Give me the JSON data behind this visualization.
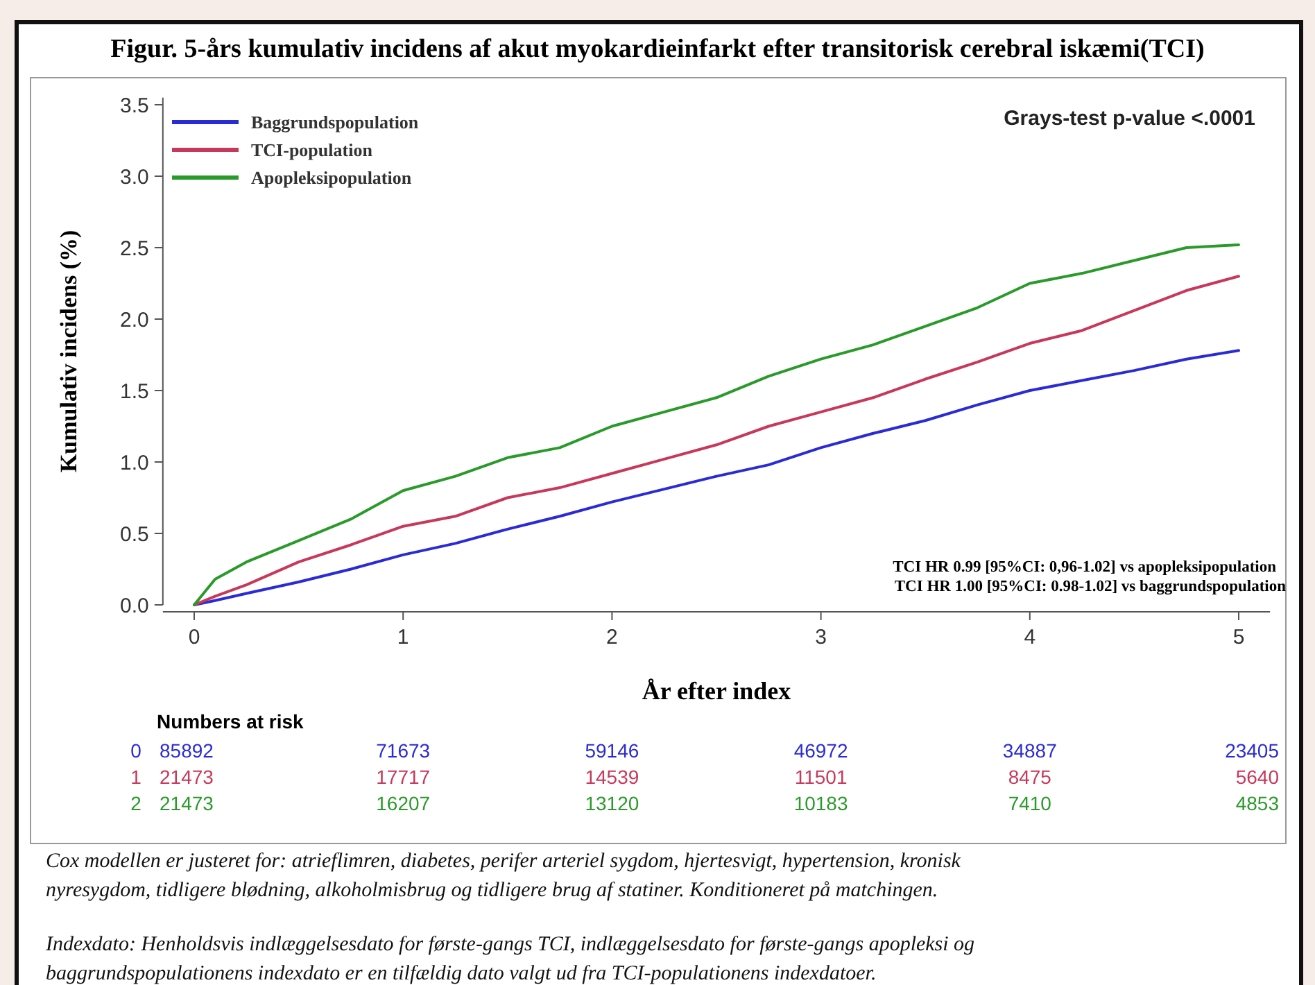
{
  "chart_data": {
    "type": "line",
    "title": "Figur. 5-års kumulativ incidens af akut myokardieinfarkt efter transitorisk cerebral iskæmi(TCI)",
    "xlabel": "År efter index",
    "ylabel": "Kumulativ incidens (%)",
    "x": [
      0,
      0.1,
      0.25,
      0.5,
      0.75,
      1,
      1.25,
      1.5,
      1.75,
      2,
      2.25,
      2.5,
      2.75,
      3,
      3.25,
      3.5,
      3.75,
      4,
      4.25,
      4.5,
      4.75,
      5
    ],
    "series": [
      {
        "name": "Baggrundspopulation",
        "color": "#2b2bd6",
        "values": [
          0,
          0.03,
          0.08,
          0.16,
          0.25,
          0.35,
          0.43,
          0.53,
          0.62,
          0.72,
          0.81,
          0.9,
          0.98,
          1.1,
          1.2,
          1.29,
          1.4,
          1.5,
          1.57,
          1.64,
          1.72,
          1.78
        ]
      },
      {
        "name": "TCI-population",
        "color": "#c8385a",
        "values": [
          0,
          0.06,
          0.14,
          0.3,
          0.42,
          0.55,
          0.62,
          0.75,
          0.82,
          0.92,
          1.02,
          1.12,
          1.25,
          1.35,
          1.45,
          1.58,
          1.7,
          1.83,
          1.92,
          2.06,
          2.2,
          2.3
        ]
      },
      {
        "name": "Apopleksipopulation",
        "color": "#2a9a2a",
        "values": [
          0,
          0.18,
          0.3,
          0.45,
          0.6,
          0.8,
          0.9,
          1.03,
          1.1,
          1.25,
          1.35,
          1.45,
          1.6,
          1.72,
          1.82,
          1.95,
          2.08,
          2.25,
          2.32,
          2.41,
          2.5,
          2.52
        ]
      }
    ],
    "xlim": [
      -0.15,
      5.15
    ],
    "xticks": [
      0,
      1,
      2,
      3,
      4,
      5
    ],
    "ylim": [
      0,
      3.55
    ],
    "yticks": [
      {
        "value": 0,
        "label": "0.0"
      },
      {
        "value": 0.5,
        "label": "0.5"
      },
      {
        "value": 1,
        "label": "1.0"
      },
      {
        "value": 1.5,
        "label": "1.5"
      },
      {
        "value": 2,
        "label": "2.0"
      },
      {
        "value": 2.5,
        "label": "2.5"
      },
      {
        "value": 3,
        "label": "3.0"
      },
      {
        "value": 3.5,
        "label": "3.5"
      }
    ],
    "legend": "top left",
    "grid": false,
    "annotations": [
      "Grays-test p-value <.0001",
      "TCI HR 0.99 [95%CI: 0,96-1.02] vs apopleksipopulation",
      "TCI HR 1.00 [95%CI: 0.98-1.02] vs baggrundspopulation",
      "Numbers at risk",
      "0 85892 71673 59146 46972 34887 23405",
      "1 21473 17717 14539 11501 8475 5640",
      "2 21473 16207 13120 10183 7410 4853",
      "Cox modellen er justeret for: atrieflimren, diabetes, perifer arteriel sygdom, hjertesvigt, hypertension, kronisk nyresygdom, tidligere blødning, alkoholmisbrug og tidligere brug af statiner. Konditioneret på matchingen.",
      "Indexdato: Henholdsvis indlæggelsesdato for første-gangs TCI, indlæggelsesdato for første-gangs apopleksi og baggrundspopulationens indexdato er en tilfældig dato valgt ud fra TCI-populationens indexdatoer."
    ]
  }
}
